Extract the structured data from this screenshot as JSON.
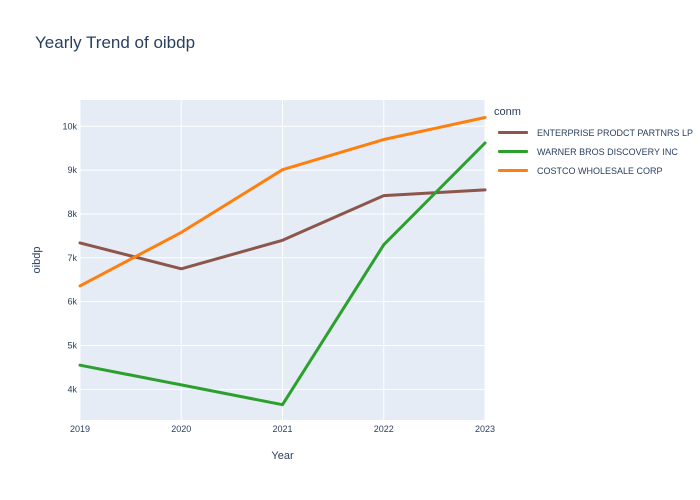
{
  "chart_data": {
    "type": "line",
    "title": "Yearly Trend of oibdp",
    "xlabel": "Year",
    "ylabel": "oibdp",
    "x": [
      2019,
      2020,
      2021,
      2022,
      2023
    ],
    "x_tick_labels": [
      "2019",
      "2020",
      "2021",
      "2022",
      "2023"
    ],
    "xlim": [
      2019,
      2023
    ],
    "ylim": [
      3300,
      10600
    ],
    "y_ticks": [
      4000,
      5000,
      6000,
      7000,
      8000,
      9000,
      10000
    ],
    "y_tick_labels": [
      "4k",
      "5k",
      "6k",
      "7k",
      "8k",
      "9k",
      "10k"
    ],
    "legend_title": "conm",
    "grid": true,
    "series": [
      {
        "name": "ENTERPRISE PRODCT PARTNRS LP",
        "color": "#8c564b",
        "values": [
          7340,
          6750,
          7400,
          8420,
          8550
        ]
      },
      {
        "name": "WARNER BROS DISCOVERY INC",
        "color": "#2ca02c",
        "values": [
          4550,
          4100,
          3650,
          7300,
          9620
        ]
      },
      {
        "name": "COSTCO WHOLESALE CORP",
        "color": "#ff7f0e",
        "values": [
          6360,
          7580,
          9010,
          9700,
          10200
        ]
      }
    ]
  }
}
